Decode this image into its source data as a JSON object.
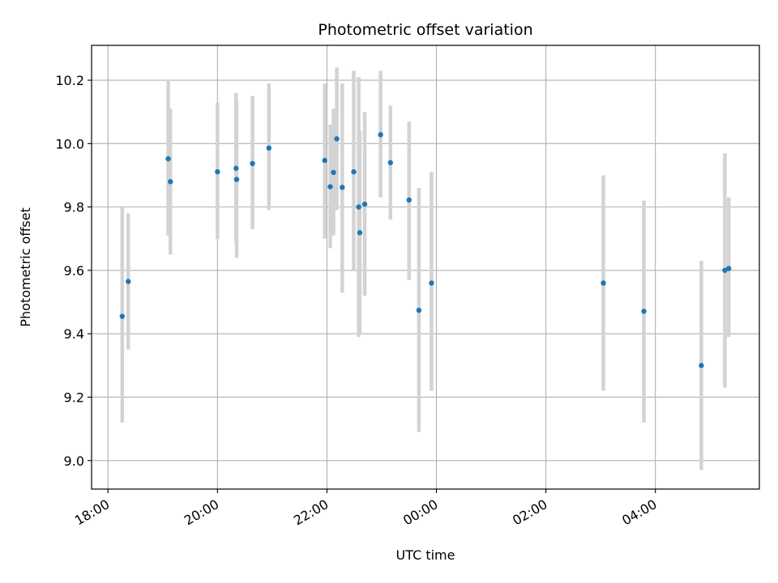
{
  "chart_data": {
    "type": "scatter",
    "title": "Photometric offset variation",
    "xlabel": "UTC time",
    "ylabel": "Photometric offset",
    "x_unit": "hours since 18:00 UTC",
    "xlim": [
      -0.3,
      11.9
    ],
    "ylim": [
      8.91,
      10.31
    ],
    "x_ticks": [
      {
        "value": 0,
        "label": "18:00"
      },
      {
        "value": 2,
        "label": "20:00"
      },
      {
        "value": 4,
        "label": "22:00"
      },
      {
        "value": 6,
        "label": "00:00"
      },
      {
        "value": 8,
        "label": "02:00"
      },
      {
        "value": 10,
        "label": "04:00"
      }
    ],
    "y_ticks": [
      {
        "value": 9.0,
        "label": "9.0"
      },
      {
        "value": 9.2,
        "label": "9.2"
      },
      {
        "value": 9.4,
        "label": "9.4"
      },
      {
        "value": 9.6,
        "label": "9.6"
      },
      {
        "value": 9.8,
        "label": "9.8"
      },
      {
        "value": 10.0,
        "label": "10.0"
      },
      {
        "value": 10.2,
        "label": "10.2"
      }
    ],
    "grid": true,
    "colors": {
      "point": "#1f77b4",
      "errorbar": "#d3d3d3",
      "grid": "#b0b0b0",
      "axes": "#000000"
    },
    "points": [
      {
        "x": 0.26,
        "y": 9.455,
        "ylo": 9.12,
        "yhi": 9.8
      },
      {
        "x": 0.37,
        "y": 9.565,
        "ylo": 9.35,
        "yhi": 9.78
      },
      {
        "x": 1.1,
        "y": 9.952,
        "ylo": 9.71,
        "yhi": 10.2
      },
      {
        "x": 1.14,
        "y": 9.88,
        "ylo": 9.65,
        "yhi": 10.11
      },
      {
        "x": 2.0,
        "y": 9.911,
        "ylo": 9.7,
        "yhi": 10.13
      },
      {
        "x": 2.34,
        "y": 9.922,
        "ylo": 9.69,
        "yhi": 10.16
      },
      {
        "x": 2.35,
        "y": 9.887,
        "ylo": 9.64,
        "yhi": 10.13
      },
      {
        "x": 2.64,
        "y": 9.937,
        "ylo": 9.73,
        "yhi": 10.15
      },
      {
        "x": 2.94,
        "y": 9.986,
        "ylo": 9.79,
        "yhi": 10.19
      },
      {
        "x": 3.96,
        "y": 9.947,
        "ylo": 9.7,
        "yhi": 10.19
      },
      {
        "x": 4.06,
        "y": 9.864,
        "ylo": 9.67,
        "yhi": 10.06
      },
      {
        "x": 4.12,
        "y": 9.909,
        "ylo": 9.71,
        "yhi": 10.11
      },
      {
        "x": 4.18,
        "y": 10.015,
        "ylo": 9.79,
        "yhi": 10.24
      },
      {
        "x": 4.28,
        "y": 9.862,
        "ylo": 9.53,
        "yhi": 10.19
      },
      {
        "x": 4.49,
        "y": 9.911,
        "ylo": 9.6,
        "yhi": 10.23
      },
      {
        "x": 4.58,
        "y": 9.8,
        "ylo": 9.39,
        "yhi": 10.21
      },
      {
        "x": 4.6,
        "y": 9.719,
        "ylo": 9.4,
        "yhi": 10.04
      },
      {
        "x": 4.69,
        "y": 9.809,
        "ylo": 9.52,
        "yhi": 10.1
      },
      {
        "x": 4.98,
        "y": 10.028,
        "ylo": 9.83,
        "yhi": 10.23
      },
      {
        "x": 5.16,
        "y": 9.94,
        "ylo": 9.76,
        "yhi": 10.12
      },
      {
        "x": 5.5,
        "y": 9.822,
        "ylo": 9.57,
        "yhi": 10.07
      },
      {
        "x": 5.68,
        "y": 9.474,
        "ylo": 9.09,
        "yhi": 9.86
      },
      {
        "x": 5.91,
        "y": 9.56,
        "ylo": 9.22,
        "yhi": 9.91
      },
      {
        "x": 9.05,
        "y": 9.56,
        "ylo": 9.22,
        "yhi": 9.9
      },
      {
        "x": 9.79,
        "y": 9.471,
        "ylo": 9.12,
        "yhi": 9.82
      },
      {
        "x": 10.84,
        "y": 9.3,
        "ylo": 8.97,
        "yhi": 9.63
      },
      {
        "x": 11.27,
        "y": 9.6,
        "ylo": 9.23,
        "yhi": 9.97
      },
      {
        "x": 11.34,
        "y": 9.606,
        "ylo": 9.39,
        "yhi": 9.83
      }
    ]
  }
}
